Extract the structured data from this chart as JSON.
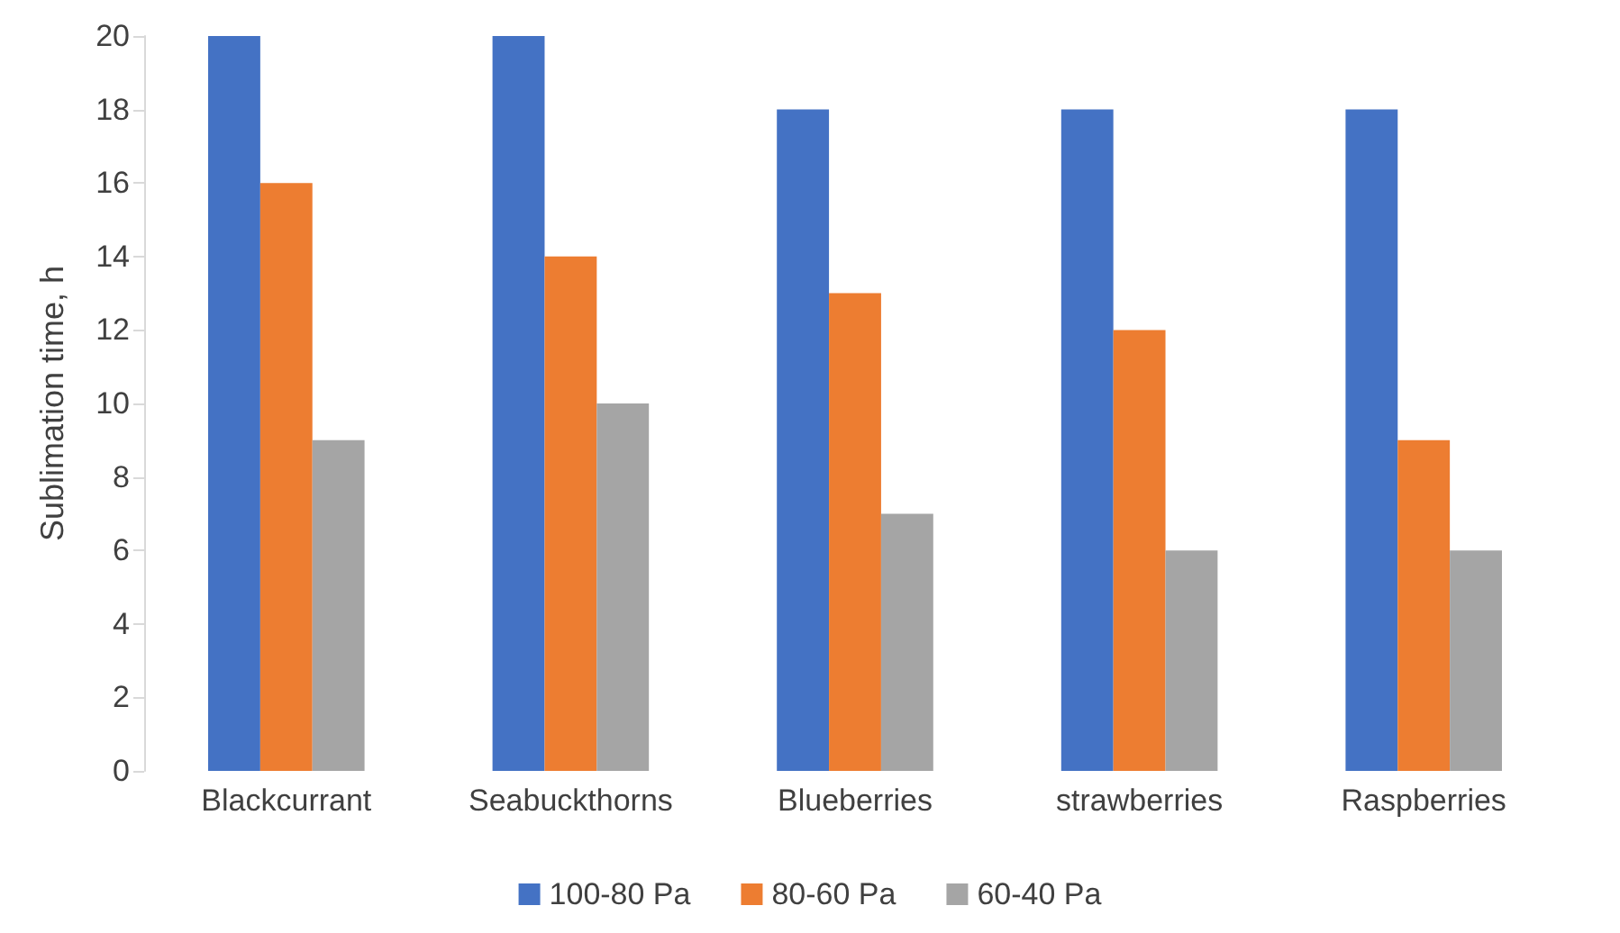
{
  "chart_data": {
    "type": "bar",
    "ylabel": "Sublimation time, h",
    "categories": [
      "Blackcurrant",
      "Seabuckthorns",
      "Blueberries",
      "strawberries",
      "Raspberries"
    ],
    "series": [
      {
        "name": "100-80 Pa",
        "color": "#4472c4",
        "values": [
          20,
          20,
          18,
          18,
          18
        ]
      },
      {
        "name": "80-60 Pa",
        "color": "#ed7d31",
        "values": [
          16,
          14,
          13,
          12,
          9
        ]
      },
      {
        "name": "60-40 Pa",
        "color": "#a5a5a5",
        "values": [
          9,
          10,
          7,
          6,
          6
        ]
      }
    ],
    "ylim": [
      0,
      20
    ],
    "yticks": [
      0,
      2,
      4,
      6,
      8,
      10,
      12,
      14,
      16,
      18,
      20
    ],
    "grid": false,
    "legend": "bottom"
  }
}
